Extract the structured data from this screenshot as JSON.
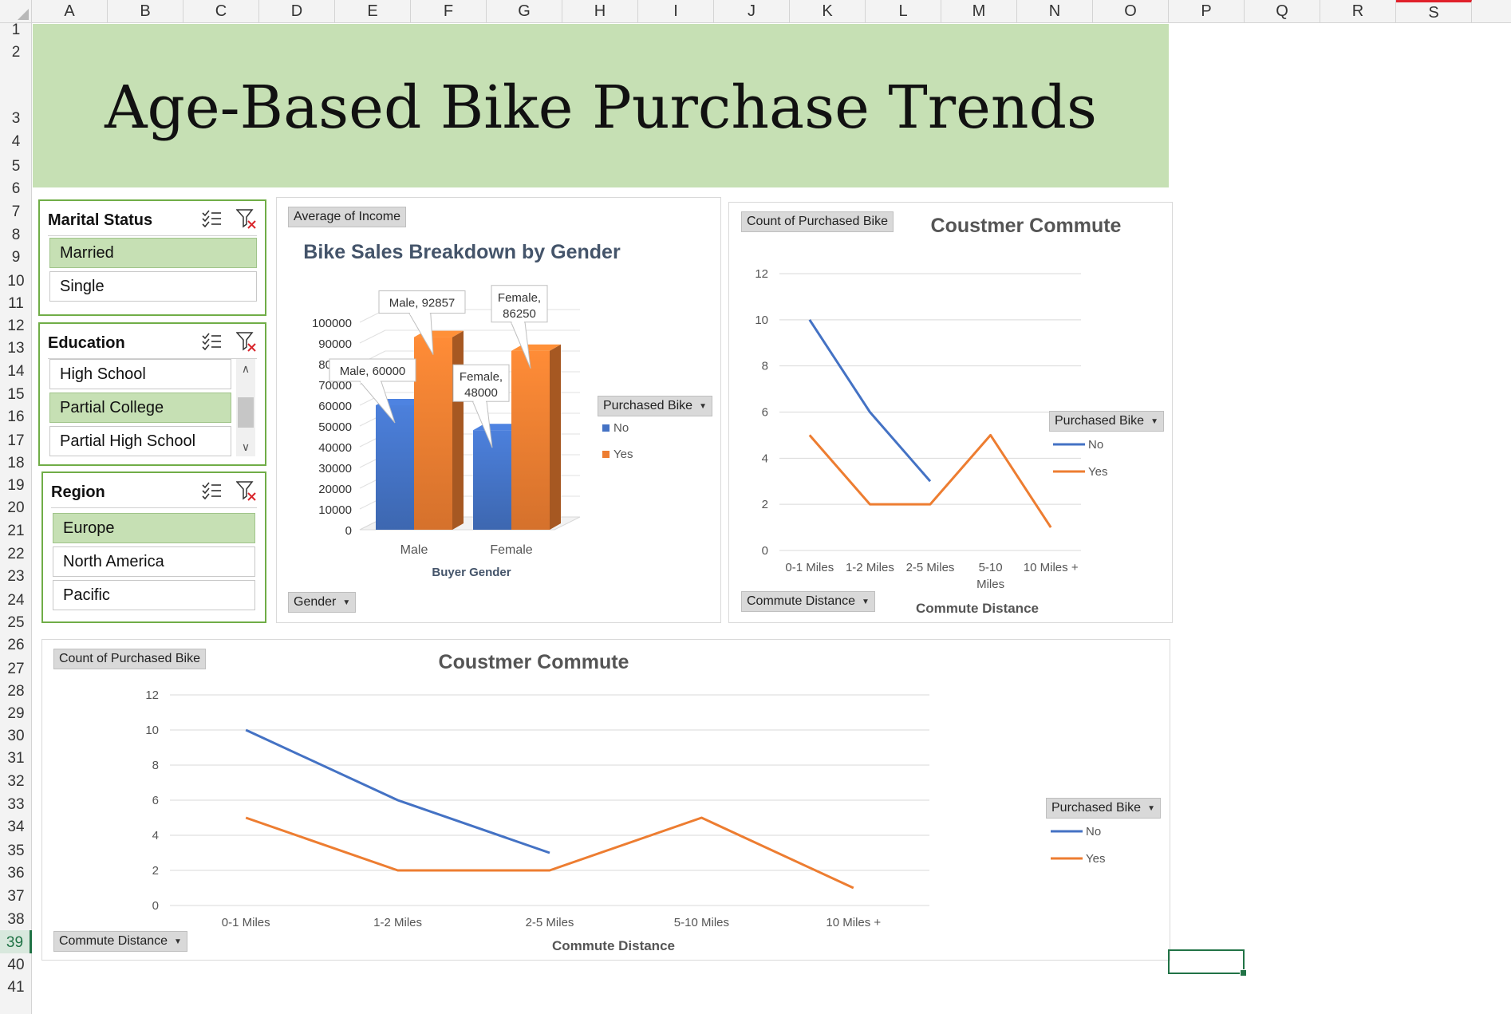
{
  "sheet": {
    "columns": [
      "A",
      "B",
      "C",
      "D",
      "E",
      "F",
      "G",
      "H",
      "I",
      "J",
      "K",
      "L",
      "M",
      "N",
      "O",
      "P",
      "Q",
      "R",
      "S"
    ],
    "rows": [
      "1",
      "2",
      "3",
      "4",
      "5",
      "6",
      "7",
      "8",
      "9",
      "10",
      "11",
      "12",
      "13",
      "14",
      "15",
      "16",
      "17",
      "18",
      "19",
      "20",
      "21",
      "22",
      "23",
      "24",
      "25",
      "26",
      "27",
      "28",
      "29",
      "30",
      "31",
      "32",
      "33",
      "34",
      "35",
      "36",
      "37",
      "38",
      "39",
      "40",
      "41"
    ],
    "active_row": "39"
  },
  "dashboard": {
    "title": "Age-Based Bike Purchase Trends"
  },
  "slicers": {
    "marital": {
      "title": "Marital Status",
      "items": [
        {
          "label": "Married",
          "selected": true
        },
        {
          "label": "Single",
          "selected": false
        }
      ]
    },
    "education": {
      "title": "Education",
      "items": [
        {
          "label": "High School",
          "selected": false
        },
        {
          "label": "Partial College",
          "selected": true
        },
        {
          "label": "Partial High School",
          "selected": false
        }
      ]
    },
    "region": {
      "title": "Region",
      "items": [
        {
          "label": "Europe",
          "selected": true
        },
        {
          "label": "North America",
          "selected": false
        },
        {
          "label": "Pacific",
          "selected": false
        }
      ]
    }
  },
  "colors": {
    "no": "#4472c4",
    "yes": "#ed7d31",
    "banner": "#c6e0b4",
    "slicer_border": "#70ad47"
  },
  "bar_chart": {
    "value_field": "Average of Income",
    "axis_field": "Gender",
    "legend_field": "Purchased Bike",
    "legend": [
      "No",
      "Yes"
    ]
  },
  "commute_chart_top": {
    "value_field": "Count of Purchased Bike",
    "axis_field": "Commute Distance",
    "legend_field": "Purchased Bike",
    "legend": [
      "No",
      "Yes"
    ]
  },
  "commute_chart_bottom": {
    "value_field": "Count of Purchased Bike",
    "axis_field": "Commute Distance",
    "legend_field": "Purchased Bike",
    "legend": [
      "No",
      "Yes"
    ]
  },
  "chart_data": [
    {
      "type": "bar",
      "title": "Bike Sales Breakdown by Gender",
      "xlabel": "Buyer Gender",
      "ylabel": "",
      "categories": [
        "Male",
        "Female"
      ],
      "series": [
        {
          "name": "No",
          "values": [
            60000,
            48000
          ]
        },
        {
          "name": "Yes",
          "values": [
            92857,
            86250
          ]
        }
      ],
      "data_labels": [
        [
          "Male, 60000",
          "Female, 48000"
        ],
        [
          "Male, 92857",
          "Female, 86250"
        ]
      ],
      "ylim": [
        0,
        100000
      ],
      "yticks": [
        "0",
        "10000",
        "20000",
        "30000",
        "40000",
        "50000",
        "60000",
        "70000",
        "80000",
        "90000",
        "100000"
      ],
      "legend_position": "right",
      "grid": true
    },
    {
      "type": "line",
      "title": "Coustmer Commute",
      "xlabel": "Commute Distance",
      "ylabel": "",
      "categories": [
        "0-1 Miles",
        "1-2 Miles",
        "2-5 Miles",
        "5-10 Miles",
        "10 Miles +"
      ],
      "series": [
        {
          "name": "No",
          "values": [
            10,
            6,
            3,
            null,
            null
          ]
        },
        {
          "name": "Yes",
          "values": [
            5,
            2,
            2,
            5,
            1
          ]
        }
      ],
      "ylim": [
        0,
        12
      ],
      "yticks": [
        "0",
        "2",
        "4",
        "6",
        "8",
        "10",
        "12"
      ],
      "legend_position": "right",
      "grid": true
    },
    {
      "type": "line",
      "title": "Coustmer Commute",
      "xlabel": "Commute Distance",
      "ylabel": "",
      "categories": [
        "0-1 Miles",
        "1-2 Miles",
        "2-5 Miles",
        "5-10 Miles",
        "10 Miles +"
      ],
      "series": [
        {
          "name": "No",
          "values": [
            10,
            6,
            3,
            null,
            null
          ]
        },
        {
          "name": "Yes",
          "values": [
            5,
            2,
            2,
            5,
            1
          ]
        }
      ],
      "ylim": [
        0,
        12
      ],
      "yticks": [
        "0",
        "2",
        "4",
        "6",
        "8",
        "10",
        "12"
      ],
      "legend_position": "right",
      "grid": true
    }
  ]
}
